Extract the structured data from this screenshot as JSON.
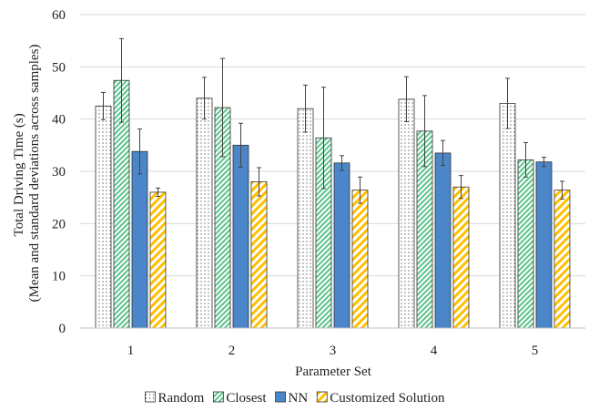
{
  "chart_data": {
    "type": "bar",
    "xlabel": "Parameter Set",
    "ylabel_line1": "Total Driving Time (s)",
    "ylabel_line2": "(Mean and standard deviations across samples)",
    "ylim": [
      0,
      60
    ],
    "yticks": [
      0,
      10,
      20,
      30,
      40,
      50,
      60
    ],
    "categories": [
      "1",
      "2",
      "3",
      "4",
      "5"
    ],
    "grid": true,
    "legend_position": "bottom",
    "series": [
      {
        "name": "Random",
        "pattern": "dots",
        "color": "#ffffff",
        "values": [
          42.5,
          44.0,
          42.0,
          43.8,
          43.0
        ],
        "errors": [
          2.6,
          4.0,
          4.5,
          4.3,
          4.8
        ]
      },
      {
        "name": "Closest",
        "pattern": "diag-green",
        "color": "#8fd3a8",
        "values": [
          47.4,
          42.2,
          36.4,
          37.7,
          32.2
        ],
        "errors": [
          8.0,
          9.4,
          9.7,
          6.8,
          3.3
        ]
      },
      {
        "name": "NN",
        "pattern": "solid-blue",
        "color": "#4a86c8",
        "values": [
          33.8,
          35.0,
          31.6,
          33.5,
          31.8
        ],
        "errors": [
          4.3,
          4.2,
          1.4,
          2.4,
          0.9
        ]
      },
      {
        "name": "Customized Solution",
        "pattern": "diag-yellow",
        "color": "#ffc000",
        "values": [
          26.0,
          28.0,
          26.4,
          27.0,
          26.4
        ],
        "errors": [
          0.8,
          2.7,
          2.5,
          2.2,
          1.7
        ]
      }
    ]
  }
}
